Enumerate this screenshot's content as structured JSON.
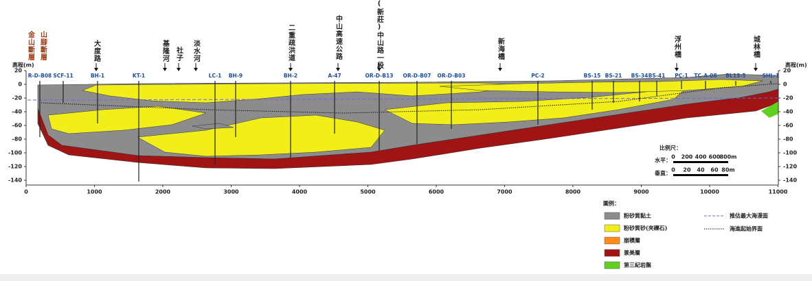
{
  "axis": {
    "y_label": "高程(m)",
    "yticks": [
      20,
      0,
      -20,
      -40,
      -60,
      -80,
      -100,
      -120,
      -140
    ],
    "xticks": [
      0,
      1000,
      2000,
      3000,
      4000,
      5000,
      6000,
      7000,
      8000,
      9000,
      10000,
      11000
    ]
  },
  "boreholes": [
    "R-D-B08",
    "SCF-11",
    "BH-1",
    "KT-1",
    "LC-1",
    "BH-9",
    "BH-2",
    "A-47",
    "OR-D-B13",
    "OR-D-B07",
    "OR-D-B03",
    "PC-2",
    "BS-15",
    "BS-21",
    "BS-34",
    "BS-41",
    "PC-1",
    "TC-A-08",
    "BL13-5",
    "SHL-1"
  ],
  "landmarks": [
    "金山斷層",
    "山腳斷層",
    "大度路",
    "基隆河",
    "社子",
    "淡水河",
    "二重疏洪道",
    "中山高速公路",
    "(新莊)中山路一段",
    "新海橋",
    "浮州橋",
    "城林橋"
  ],
  "scale": {
    "title": "比例尺：",
    "horizontal": {
      "label": "水平：",
      "ticks": [
        "0",
        "200",
        "400",
        "600",
        "800m"
      ]
    },
    "vertical": {
      "label": "垂直：",
      "ticks": [
        "0",
        "20",
        "40",
        "60",
        "80m"
      ]
    }
  },
  "legend": {
    "title": "圖例：",
    "items": [
      "粉砂質黏土",
      "粉砂質砂(夾礫石)",
      "崩積層",
      "景美層",
      "第三紀岩盤"
    ],
    "lines": [
      "推估最大海漫面",
      "海進起始界面"
    ]
  }
}
